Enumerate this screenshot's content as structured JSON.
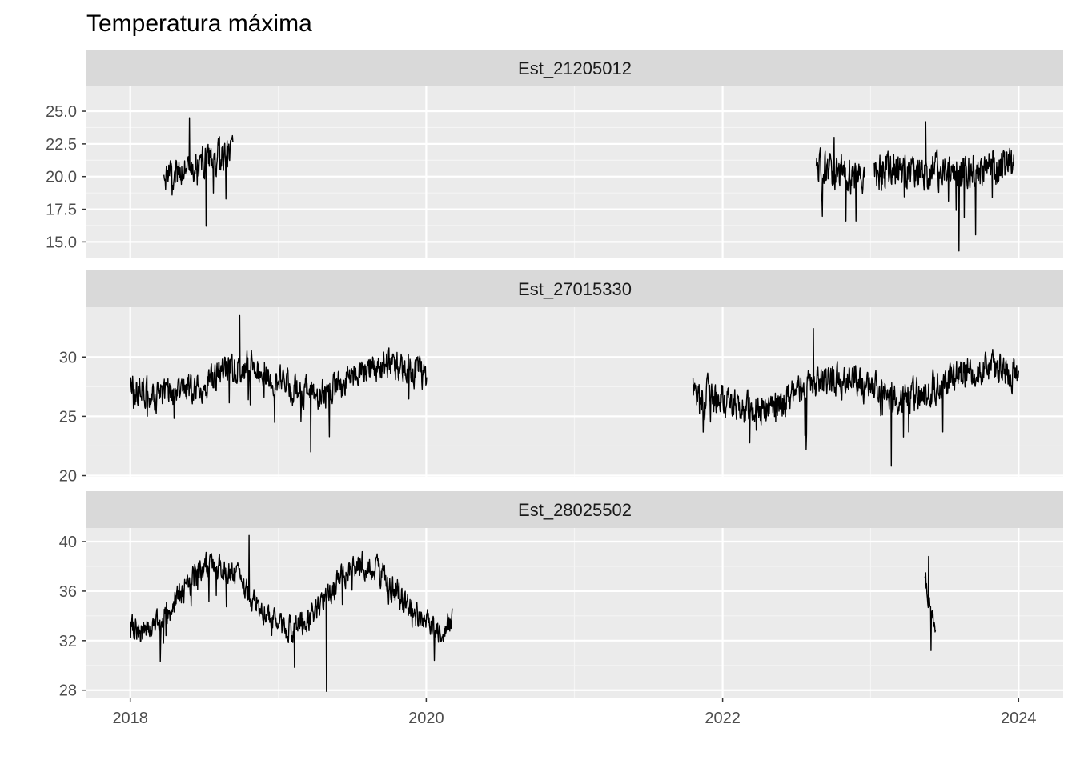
{
  "chart_data": {
    "type": "line",
    "title": "Temperatura máxima",
    "xlabel": "",
    "ylabel": "",
    "x_range": [
      "2017-09-15",
      "2024-04-20"
    ],
    "x_ticks": [
      "2018",
      "2020",
      "2022",
      "2024"
    ],
    "grid": true,
    "legend": "none",
    "panels": [
      {
        "name": "Est_21205012",
        "ylim": [
          13.8,
          26.9
        ],
        "y_ticks": [
          "15.0",
          "17.5",
          "20.0",
          "22.5",
          "25.0"
        ],
        "y_values": [
          15.0,
          17.5,
          20.0,
          22.5,
          25.0
        ],
        "series": [
          {
            "start": "2018-03-25",
            "end": "2018-09-12",
            "min": 16.2,
            "max": 24.5,
            "base": 21.0,
            "noise": 1.8,
            "amp": 0,
            "phase": 0,
            "trend": 2.0
          },
          {
            "start": "2022-08-20",
            "end": "2022-12-18",
            "min": 16.6,
            "max": 23.0,
            "base": 20.3,
            "noise": 2.0,
            "amp": 0,
            "phase": 0,
            "trend": -1.0
          },
          {
            "start": "2023-01-10",
            "end": "2023-12-20",
            "min": 14.3,
            "max": 24.2,
            "base": 20.5,
            "noise": 2.2,
            "amp": 0,
            "phase": 0,
            "trend": 0.3
          }
        ]
      },
      {
        "name": "Est_27015330",
        "ylim": [
          19.9,
          34.2
        ],
        "y_ticks": [
          "20",
          "25",
          "30"
        ],
        "y_values": [
          20,
          25,
          30
        ],
        "series": [
          {
            "start": "2018-01-01",
            "end": "2020-01-02",
            "min": 22.0,
            "max": 33.5,
            "base": 28.0,
            "noise": 2.0,
            "amp": 1.2,
            "phase": 1.3,
            "trend": 0.5
          },
          {
            "start": "2021-10-20",
            "end": "2024-01-01",
            "min": 20.8,
            "max": 32.4,
            "base": 27.3,
            "noise": 2.1,
            "amp": 1.0,
            "phase": 1.3,
            "trend": 2.3
          }
        ]
      },
      {
        "name": "Est_28025502",
        "ylim": [
          27.4,
          41.1
        ],
        "y_ticks": [
          "28",
          "32",
          "36",
          "40"
        ],
        "y_values": [
          28,
          32,
          36,
          40
        ],
        "series": [
          {
            "start": "2018-01-01",
            "end": "2020-03-05",
            "min": 27.9,
            "max": 40.5,
            "base": 35.5,
            "noise": 1.6,
            "amp": 2.6,
            "phase": 2.4,
            "trend": 0.2
          },
          {
            "start": "2023-05-15",
            "end": "2023-06-10",
            "min": 31.2,
            "max": 38.8,
            "base": 34.8,
            "noise": 1.2,
            "amp": 0,
            "phase": 0,
            "trend": -4.5
          }
        ]
      }
    ]
  },
  "colors": {
    "panel_bg": "#EBEBEB",
    "strip_bg": "#D9D9D9",
    "grid_major": "#FFFFFF",
    "grid_minor": "#F5F5F5",
    "line": "#000000",
    "axis_text": "#4D4D4D",
    "strip_text": "#1A1A1A"
  }
}
